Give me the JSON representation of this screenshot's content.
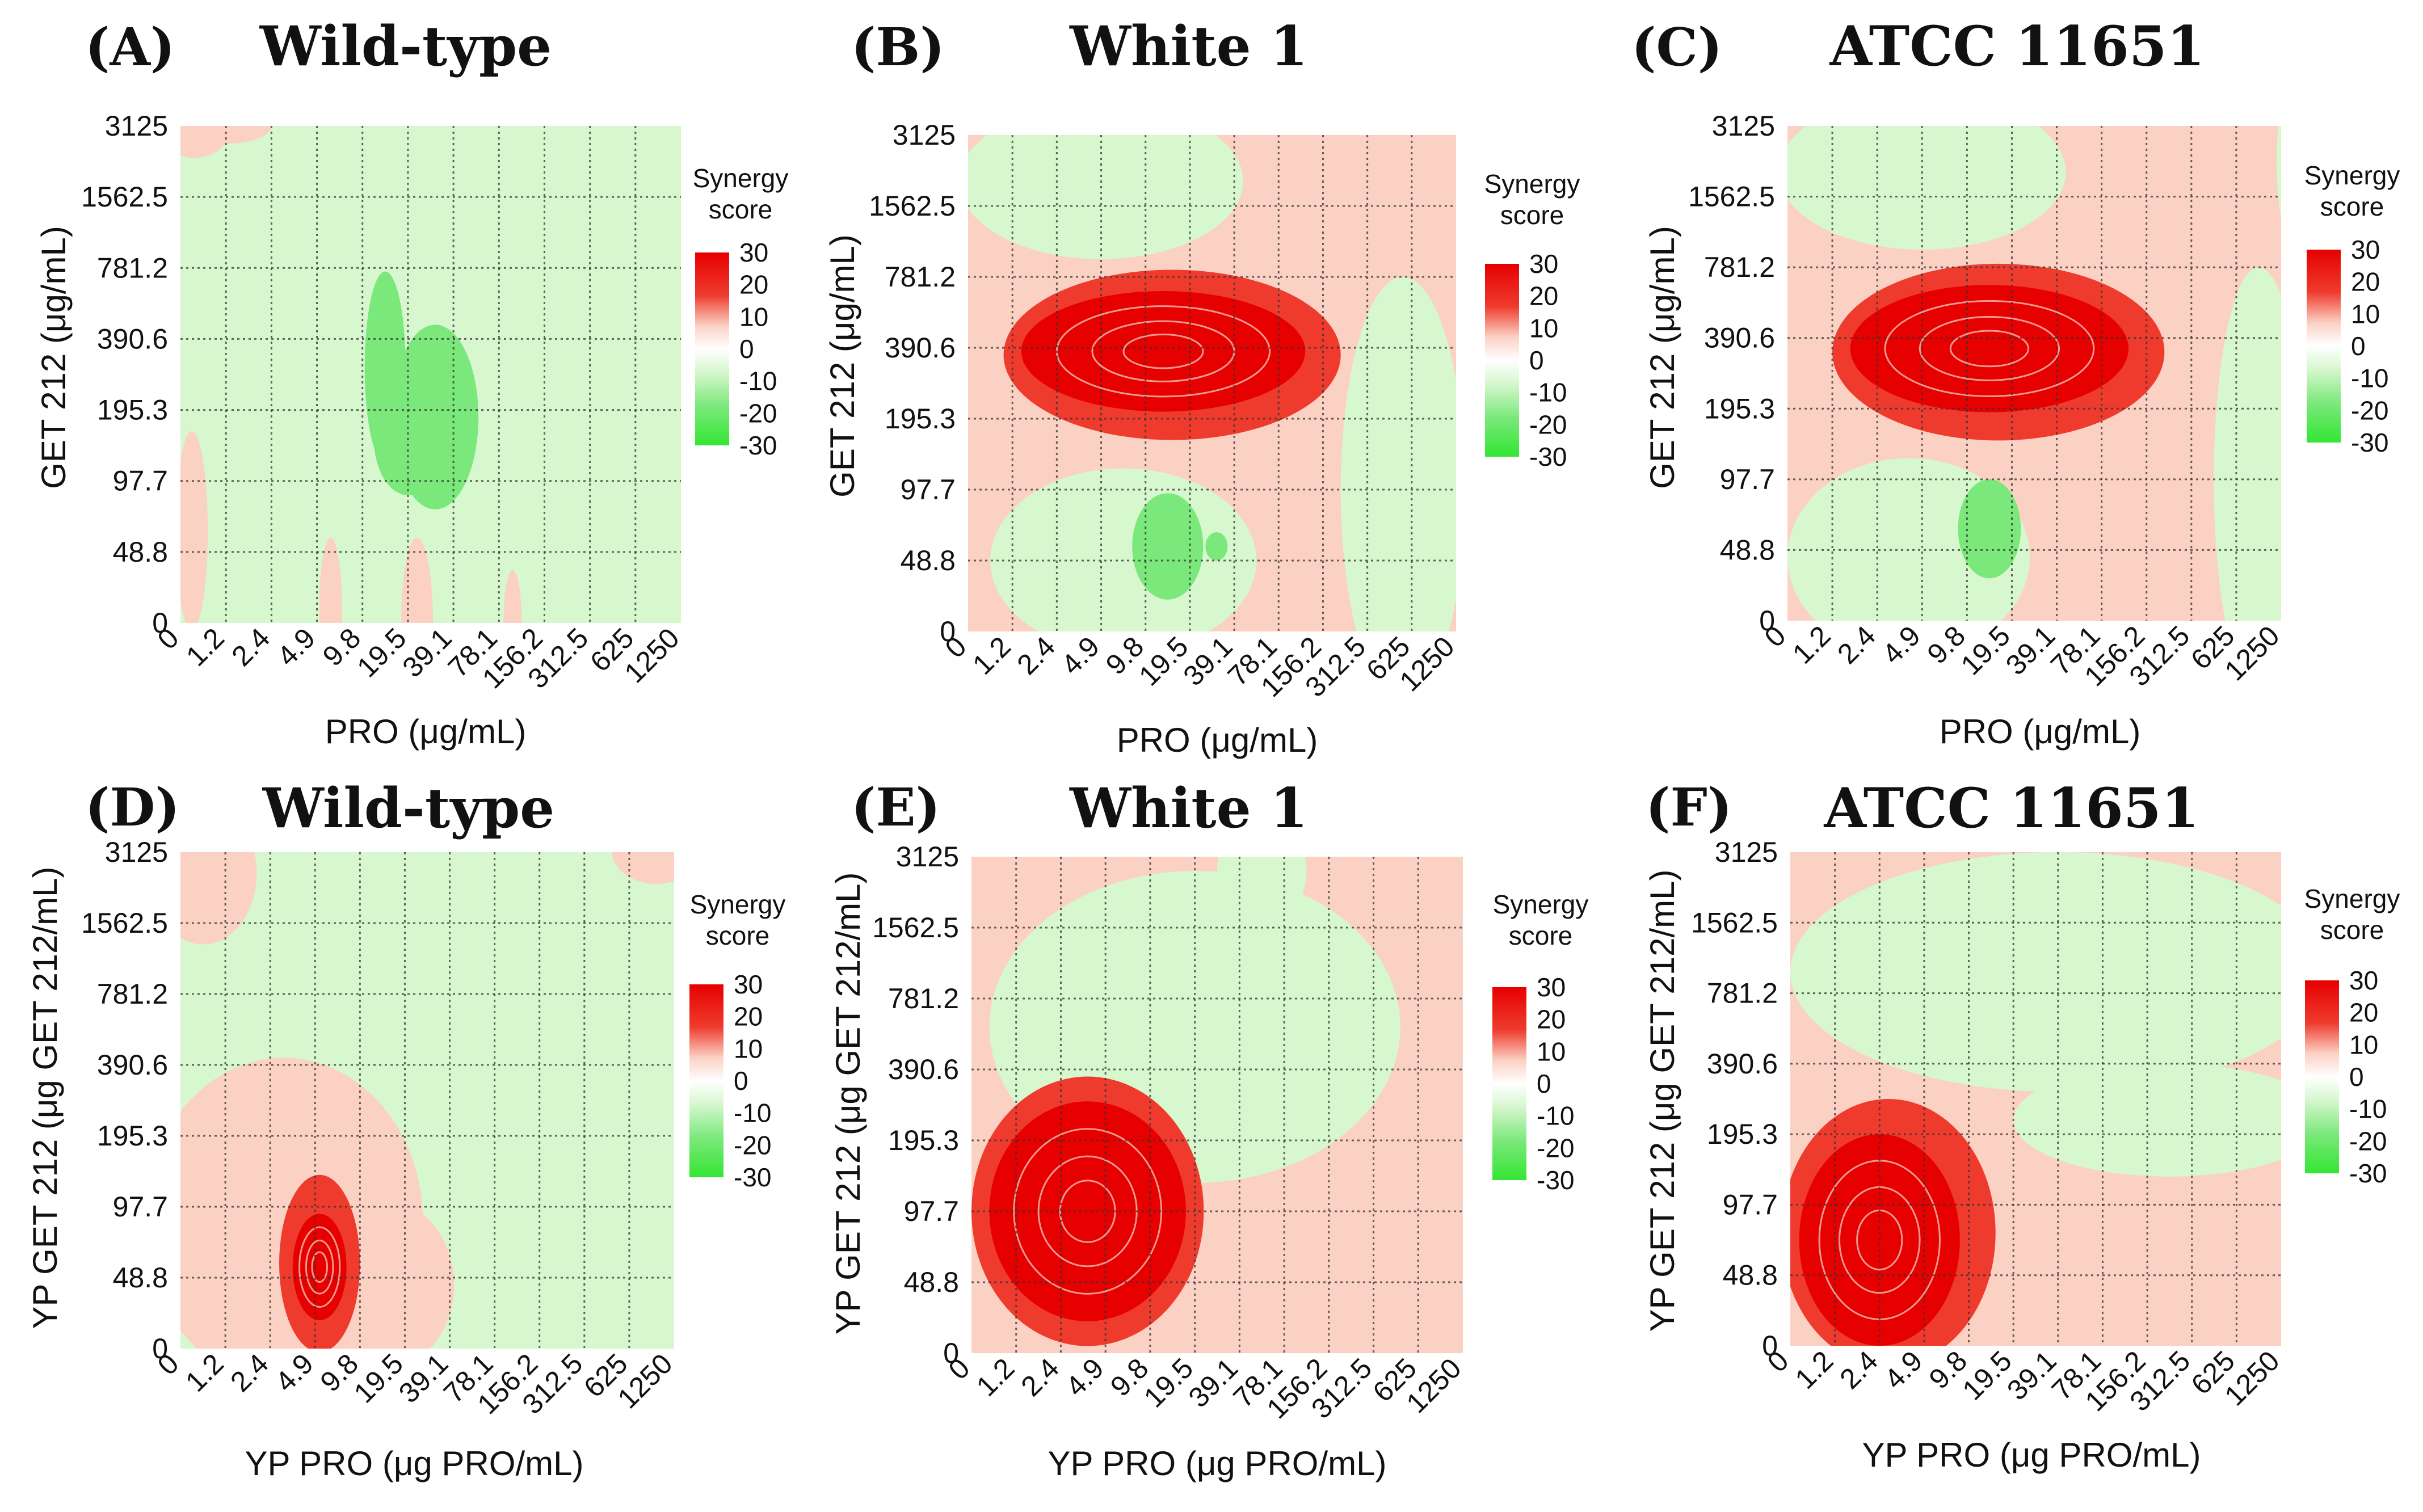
{
  "colors": {
    "green_strong": "#33e633",
    "green_mid": "#7ae87a",
    "green_light": "#d7f7cf",
    "white": "#ffffff",
    "pink_light": "#fbd1c4",
    "salmon": "#f57f66",
    "red_mid": "#ee3b2d",
    "red_strong": "#e60000"
  },
  "chart_data": [
    {
      "type": "heatmap",
      "panel": "(A)",
      "title": "Wild-type",
      "xlabel": "PRO (μg/mL)",
      "ylabel": "GET 212 (μg/mL)",
      "x_ticks": [
        "0",
        "1.2",
        "2.4",
        "4.9",
        "9.8",
        "19.5",
        "39.1",
        "78.1",
        "156.2",
        "312.5",
        "625",
        "1250"
      ],
      "y_ticks": [
        "0",
        "48.8",
        "97.7",
        "195.3",
        "390.6",
        "781.2",
        "1562.5",
        "3125"
      ],
      "legend_title": [
        "Synergy",
        "score"
      ],
      "legend_ticks": [
        "30",
        "20",
        "10",
        "0",
        "-10",
        "-20",
        "-30"
      ],
      "zlim": [
        -30,
        30
      ],
      "background_level": -10,
      "blobs": [
        {
          "level": 10,
          "x": 0.3,
          "y": 7.1,
          "rx": 0.9,
          "ry": 0.55
        },
        {
          "level": 10,
          "x": 1.0,
          "y": 7.0,
          "rx": 1.0,
          "ry": 0.25
        },
        {
          "level": 10,
          "x": 0.25,
          "y": 1.3,
          "rx": 0.35,
          "ry": 1.4
        },
        {
          "level": 10,
          "x": 3.3,
          "y": 0.2,
          "rx": 0.25,
          "ry": 1.0
        },
        {
          "level": 10,
          "x": 5.2,
          "y": 0.0,
          "rx": 0.35,
          "ry": 1.2
        },
        {
          "level": 10,
          "x": 7.3,
          "y": 0.0,
          "rx": 0.2,
          "ry": 0.75
        },
        {
          "level": -20,
          "x": 4.5,
          "y": 3.6,
          "rx": 0.45,
          "ry": 1.35
        },
        {
          "level": -20,
          "x": 5.6,
          "y": 2.9,
          "rx": 0.95,
          "ry": 1.3
        },
        {
          "level": -20,
          "x": 5.0,
          "y": 2.6,
          "rx": 0.75,
          "ry": 0.8
        }
      ]
    },
    {
      "type": "heatmap",
      "panel": "(B)",
      "title": "White 1",
      "xlabel": "PRO (μg/mL)",
      "ylabel": "GET 212 (μg/mL)",
      "x_ticks": [
        "0",
        "1.2",
        "2.4",
        "4.9",
        "9.8",
        "19.5",
        "39.1",
        "78.1",
        "156.2",
        "312.5",
        "625",
        "1250"
      ],
      "y_ticks": [
        "0",
        "48.8",
        "97.7",
        "195.3",
        "390.6",
        "781.2",
        "1562.5",
        "3125"
      ],
      "legend_title": [
        "Synergy",
        "score"
      ],
      "legend_ticks": [
        "30",
        "20",
        "10",
        "0",
        "-10",
        "-20",
        "-30"
      ],
      "zlim": [
        -30,
        30
      ],
      "background_level": 10,
      "blobs": [
        {
          "level": -10,
          "x": 3.0,
          "y": 6.35,
          "rx": 3.2,
          "ry": 1.1
        },
        {
          "level": -10,
          "x": 9.8,
          "y": 2.0,
          "rx": 1.4,
          "ry": 3.0
        },
        {
          "level": -10,
          "x": 3.5,
          "y": 1.0,
          "rx": 3.0,
          "ry": 1.3
        },
        {
          "level": 20,
          "x": 4.6,
          "y": 3.9,
          "rx": 3.8,
          "ry": 1.2
        },
        {
          "level": 30,
          "x": 4.4,
          "y": 3.95,
          "rx": 3.2,
          "ry": 0.85
        },
        {
          "level": -20,
          "x": 4.5,
          "y": 1.2,
          "rx": 0.8,
          "ry": 0.75
        },
        {
          "level": -20,
          "x": 5.6,
          "y": 1.2,
          "rx": 0.25,
          "ry": 0.2
        }
      ]
    },
    {
      "type": "heatmap",
      "panel": "(C)",
      "title": "ATCC 11651",
      "xlabel": "PRO (μg/mL)",
      "ylabel": "GET 212 (μg/mL)",
      "x_ticks": [
        "0",
        "1.2",
        "2.4",
        "4.9",
        "9.8",
        "19.5",
        "39.1",
        "78.1",
        "156.2",
        "312.5",
        "625",
        "1250"
      ],
      "y_ticks": [
        "0",
        "48.8",
        "97.7",
        "195.3",
        "390.6",
        "781.2",
        "1562.5",
        "3125"
      ],
      "legend_title": [
        "Synergy",
        "score"
      ],
      "legend_ticks": [
        "30",
        "20",
        "10",
        "0",
        "-10",
        "-20",
        "-30"
      ],
      "zlim": [
        -30,
        30
      ],
      "background_level": 10,
      "blobs": [
        {
          "level": -10,
          "x": 3.0,
          "y": 6.35,
          "rx": 3.2,
          "ry": 1.1
        },
        {
          "level": -10,
          "x": 10.5,
          "y": 2.0,
          "rx": 1.0,
          "ry": 3.0
        },
        {
          "level": -10,
          "x": 2.7,
          "y": 0.9,
          "rx": 2.7,
          "ry": 1.4
        },
        {
          "level": -10,
          "x": 11.3,
          "y": 6.5,
          "rx": 0.4,
          "ry": 1.2
        },
        {
          "level": 20,
          "x": 4.7,
          "y": 3.8,
          "rx": 3.7,
          "ry": 1.25
        },
        {
          "level": 30,
          "x": 4.5,
          "y": 3.85,
          "rx": 3.1,
          "ry": 0.9
        },
        {
          "level": -20,
          "x": 4.5,
          "y": 1.3,
          "rx": 0.7,
          "ry": 0.7
        }
      ]
    },
    {
      "type": "heatmap",
      "panel": "(D)",
      "title": "Wild-type",
      "xlabel": "YP PRO (μg PRO/mL)",
      "ylabel": "YP GET 212 (μg GET 212/mL)",
      "x_ticks": [
        "0",
        "1.2",
        "2.4",
        "4.9",
        "9.8",
        "19.5",
        "39.1",
        "78.1",
        "156.2",
        "312.5",
        "625",
        "1250"
      ],
      "y_ticks": [
        "0",
        "48.8",
        "97.7",
        "195.3",
        "390.6",
        "781.2",
        "1562.5",
        "3125"
      ],
      "legend_title": [
        "Synergy",
        "score"
      ],
      "legend_ticks": [
        "30",
        "20",
        "10",
        "0",
        "-10",
        "-20",
        "-30"
      ],
      "zlim": [
        -30,
        30
      ],
      "background_level": -10,
      "blobs": [
        {
          "level": 10,
          "x": 0.5,
          "y": 6.7,
          "rx": 1.2,
          "ry": 1.0
        },
        {
          "level": 10,
          "x": 10.6,
          "y": 7.05,
          "rx": 1.0,
          "ry": 0.5
        },
        {
          "level": 10,
          "x": 11.9,
          "y": 3.5,
          "rx": 0.35,
          "ry": 1.2
        },
        {
          "level": 10,
          "x": 2.3,
          "y": 1.8,
          "rx": 3.1,
          "ry": 2.3
        },
        {
          "level": 10,
          "x": 4.5,
          "y": 0.9,
          "rx": 1.6,
          "ry": 1.2
        },
        {
          "level": 20,
          "x": 3.1,
          "y": 1.2,
          "rx": 0.9,
          "ry": 1.25
        },
        {
          "level": 30,
          "x": 3.1,
          "y": 1.15,
          "rx": 0.6,
          "ry": 0.75
        }
      ]
    },
    {
      "type": "heatmap",
      "panel": "(E)",
      "title": "White 1",
      "xlabel": "YP PRO (μg PRO/mL)",
      "ylabel": "YP GET 212 (μg GET 212/mL)",
      "x_ticks": [
        "0",
        "1.2",
        "2.4",
        "4.9",
        "9.8",
        "19.5",
        "39.1",
        "78.1",
        "156.2",
        "312.5",
        "625",
        "1250"
      ],
      "y_ticks": [
        "0",
        "48.8",
        "97.7",
        "195.3",
        "390.6",
        "781.2",
        "1562.5",
        "3125"
      ],
      "legend_title": [
        "Synergy",
        "score"
      ],
      "legend_ticks": [
        "30",
        "20",
        "10",
        "0",
        "-10",
        "-20",
        "-30"
      ],
      "zlim": [
        -30,
        30
      ],
      "background_level": 10,
      "blobs": [
        {
          "level": -10,
          "x": 5.0,
          "y": 4.6,
          "rx": 4.6,
          "ry": 2.2
        },
        {
          "level": -10,
          "x": 6.5,
          "y": 6.8,
          "rx": 1.0,
          "ry": 0.8
        },
        {
          "level": 20,
          "x": 2.6,
          "y": 2.0,
          "rx": 2.6,
          "ry": 1.9
        },
        {
          "level": 30,
          "x": 2.6,
          "y": 2.0,
          "rx": 2.2,
          "ry": 1.55
        }
      ]
    },
    {
      "type": "heatmap",
      "panel": "(F)",
      "title": "ATCC 11651",
      "xlabel": "YP PRO (μg PRO/mL)",
      "ylabel": "YP GET 212 (μg GET 212/mL)",
      "x_ticks": [
        "0",
        "1.2",
        "2.4",
        "4.9",
        "9.8",
        "19.5",
        "39.1",
        "78.1",
        "156.2",
        "312.5",
        "625",
        "1250"
      ],
      "y_ticks": [
        "0",
        "48.8",
        "97.7",
        "195.3",
        "390.6",
        "781.2",
        "1562.5",
        "3125"
      ],
      "legend_title": [
        "Synergy",
        "score"
      ],
      "legend_ticks": [
        "30",
        "20",
        "10",
        "0",
        "-10",
        "-20",
        "-30"
      ],
      "zlim": [
        -30,
        30
      ],
      "background_level": 10,
      "blobs": [
        {
          "level": -10,
          "x": 6.0,
          "y": 5.3,
          "rx": 6.0,
          "ry": 1.7
        },
        {
          "level": -10,
          "x": 8.5,
          "y": 3.2,
          "rx": 3.5,
          "ry": 0.8
        },
        {
          "level": 20,
          "x": 2.2,
          "y": 1.6,
          "rx": 2.4,
          "ry": 1.9
        },
        {
          "level": 30,
          "x": 2.0,
          "y": 1.5,
          "rx": 1.8,
          "ry": 1.5
        }
      ]
    }
  ]
}
